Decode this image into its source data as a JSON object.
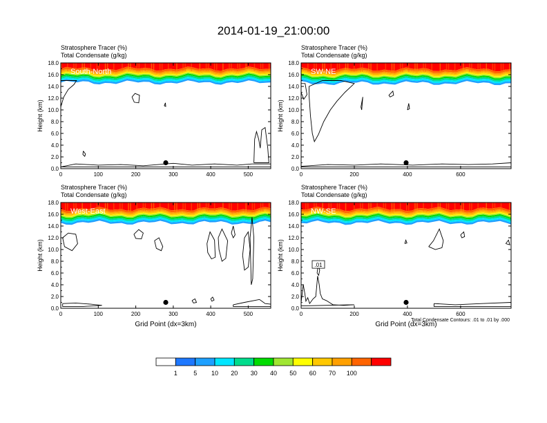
{
  "figure": {
    "title": "2014-01-19_21:00:00",
    "colorbar_labels": [
      "1",
      "5",
      "10",
      "20",
      "30",
      "40",
      "50",
      "60",
      "70",
      "100"
    ],
    "colorbar_colors": [
      "#ffffff",
      "#1e78ff",
      "#1ea0ff",
      "#00e6ff",
      "#00dc8c",
      "#00dc00",
      "#a0e632",
      "#ffff00",
      "#ffc800",
      "#ffa000",
      "#ff6400",
      "#ff0000"
    ]
  },
  "chart_data": [
    {
      "type": "heatmap",
      "panel_label": "South-North",
      "title_lines": [
        "Stratosphere Tracer   (%)",
        "Total Condensate   (g/kg)"
      ],
      "xlabel": "",
      "ylabel": "Height (km)",
      "xlim": [
        0,
        560
      ],
      "ylim": [
        0,
        18
      ],
      "xticks": [
        0,
        100,
        200,
        300,
        400,
        500
      ],
      "yticks": [
        0,
        2,
        4,
        6,
        8,
        10,
        12,
        14,
        16,
        18
      ],
      "tropopause_km": 15.7,
      "marker": {
        "x": 280,
        "y": 1.0
      },
      "contours": [
        [
          [
            0,
            10.5
          ],
          [
            8,
            12.2
          ],
          [
            20,
            13.5
          ],
          [
            35,
            14.3
          ],
          [
            42,
            15
          ],
          [
            0,
            15
          ]
        ],
        [
          [
            190,
            12.2
          ],
          [
            198,
            12.8
          ],
          [
            210,
            12.5
          ],
          [
            208,
            11.2
          ],
          [
            196,
            11.3
          ],
          [
            190,
            12.2
          ]
        ],
        [
          [
            276,
            10.7
          ],
          [
            279,
            11.2
          ],
          [
            280,
            10.6
          ],
          [
            276,
            10.7
          ]
        ],
        [
          [
            60,
            3.0
          ],
          [
            66,
            2.5
          ],
          [
            64,
            2.1
          ],
          [
            59,
            2.4
          ],
          [
            60,
            3.0
          ]
        ],
        [
          [
            0,
            0.3
          ],
          [
            40,
            0.8
          ],
          [
            100,
            0.6
          ],
          [
            160,
            0.7
          ],
          [
            220,
            0.5
          ],
          [
            300,
            0.9
          ],
          [
            350,
            0.6
          ],
          [
            410,
            0.8
          ],
          [
            470,
            0.6
          ],
          [
            510,
            0.8
          ],
          [
            560,
            0.8
          ],
          [
            560,
            0.3
          ],
          [
            0,
            0.3
          ]
        ],
        [
          [
            515,
            1.0
          ],
          [
            517,
            5.0
          ],
          [
            522,
            6.3
          ],
          [
            528,
            5.0
          ],
          [
            532,
            3.5
          ],
          [
            536,
            6.6
          ],
          [
            545,
            7.0
          ],
          [
            552,
            3.5
          ],
          [
            555,
            1.0
          ],
          [
            515,
            1.0
          ]
        ]
      ]
    },
    {
      "type": "heatmap",
      "panel_label": "SW-NE",
      "title_lines": [
        "Stratosphere Tracer   (%)",
        "Total Condensate   (g/kg)"
      ],
      "xlabel": "",
      "ylabel": "Height (km)",
      "xlim": [
        0,
        790
      ],
      "ylim": [
        0,
        18
      ],
      "xticks": [
        0,
        200,
        400,
        600
      ],
      "yticks": [
        0,
        2,
        4,
        6,
        8,
        10,
        12,
        14,
        16,
        18
      ],
      "tropopause_km": 15.6,
      "marker": {
        "x": 395,
        "y": 1.0
      },
      "contours": [
        [
          [
            30,
            12.5
          ],
          [
            35,
            9.0
          ],
          [
            42,
            6.0
          ],
          [
            50,
            4.6
          ],
          [
            65,
            5.8
          ],
          [
            85,
            8.0
          ],
          [
            110,
            10.0
          ],
          [
            135,
            11.5
          ],
          [
            165,
            13.0
          ],
          [
            200,
            14.5
          ],
          [
            150,
            15
          ],
          [
            80,
            15
          ],
          [
            30,
            14.0
          ],
          [
            30,
            12.5
          ]
        ],
        [
          [
            0,
            13
          ],
          [
            10,
            11.8
          ],
          [
            22,
            12.6
          ],
          [
            15,
            14.5
          ],
          [
            0,
            14.5
          ]
        ],
        [
          [
            225,
            10.5
          ],
          [
            232,
            12.2
          ],
          [
            228,
            10.0
          ],
          [
            225,
            10.5
          ]
        ],
        [
          [
            400,
            10.0
          ],
          [
            405,
            11.1
          ],
          [
            408,
            10.2
          ],
          [
            400,
            10.0
          ]
        ],
        [
          [
            330,
            12.5
          ],
          [
            345,
            13.2
          ],
          [
            348,
            12.5
          ],
          [
            335,
            12.2
          ],
          [
            330,
            12.5
          ]
        ],
        [
          [
            0,
            0.4
          ],
          [
            100,
            0.7
          ],
          [
            200,
            0.6
          ],
          [
            300,
            0.8
          ],
          [
            420,
            0.6
          ],
          [
            530,
            0.8
          ],
          [
            630,
            0.7
          ],
          [
            720,
            0.8
          ],
          [
            790,
            1.0
          ],
          [
            790,
            0.3
          ],
          [
            0,
            0.3
          ]
        ]
      ]
    },
    {
      "type": "heatmap",
      "panel_label": "West-East",
      "title_lines": [
        "Stratosphere Tracer   (%)",
        "Total Condensate   (g/kg)"
      ],
      "xlabel": "Grid Point (dx=3km)",
      "ylabel": "Height (km)",
      "xlim": [
        0,
        560
      ],
      "ylim": [
        0,
        18
      ],
      "xticks": [
        0,
        100,
        200,
        300,
        400,
        500
      ],
      "yticks": [
        0,
        2,
        4,
        6,
        8,
        10,
        12,
        14,
        16,
        18
      ],
      "tropopause_km": 15.6,
      "marker": {
        "x": 280,
        "y": 1.0
      },
      "contours": [
        [
          [
            5,
            12.0
          ],
          [
            20,
            12.8
          ],
          [
            40,
            12.6
          ],
          [
            45,
            11.0
          ],
          [
            30,
            9.8
          ],
          [
            10,
            10.5
          ],
          [
            5,
            12.0
          ]
        ],
        [
          [
            195,
            12.6
          ],
          [
            208,
            13.4
          ],
          [
            220,
            12.8
          ],
          [
            215,
            11.8
          ],
          [
            200,
            11.9
          ],
          [
            195,
            12.6
          ]
        ],
        [
          [
            250,
            11.5
          ],
          [
            262,
            12.0
          ],
          [
            272,
            10.5
          ],
          [
            268,
            9.8
          ],
          [
            255,
            10.2
          ],
          [
            250,
            11.5
          ]
        ],
        [
          [
            390,
            11.0
          ],
          [
            398,
            13.0
          ],
          [
            410,
            11.6
          ],
          [
            412,
            8.7
          ],
          [
            402,
            8.4
          ],
          [
            392,
            9.5
          ],
          [
            390,
            11.0
          ]
        ],
        [
          [
            420,
            12.0
          ],
          [
            430,
            13.5
          ],
          [
            445,
            11.5
          ],
          [
            440,
            8.5
          ],
          [
            430,
            8.0
          ],
          [
            422,
            10.0
          ],
          [
            420,
            12.0
          ]
        ],
        [
          [
            455,
            12.8
          ],
          [
            460,
            14.0
          ],
          [
            465,
            12.5
          ],
          [
            460,
            12.0
          ],
          [
            455,
            12.8
          ]
        ],
        [
          [
            485,
            9.0
          ],
          [
            490,
            12.0
          ],
          [
            500,
            13.0
          ],
          [
            505,
            10.0
          ],
          [
            500,
            7.0
          ],
          [
            490,
            6.5
          ],
          [
            485,
            9.0
          ]
        ],
        [
          [
            505,
            12.0
          ],
          [
            510,
            15.5
          ],
          [
            515,
            12.0
          ],
          [
            512,
            5.0
          ],
          [
            508,
            4.0
          ],
          [
            505,
            12.0
          ]
        ],
        [
          [
            5,
            0.8
          ],
          [
            40,
            0.9
          ],
          [
            80,
            0.7
          ],
          [
            110,
            0.5
          ],
          [
            60,
            0.3
          ],
          [
            5,
            0.3
          ],
          [
            5,
            0.8
          ]
        ],
        [
          [
            350,
            1.3
          ],
          [
            358,
            1.6
          ],
          [
            362,
            1.0
          ],
          [
            354,
            0.9
          ],
          [
            350,
            1.3
          ]
        ],
        [
          [
            400,
            1.6
          ],
          [
            405,
            1.9
          ],
          [
            409,
            1.4
          ],
          [
            403,
            1.2
          ],
          [
            400,
            1.6
          ]
        ],
        [
          [
            460,
            0.6
          ],
          [
            490,
            1.0
          ],
          [
            530,
            1.5
          ],
          [
            545,
            0.8
          ],
          [
            560,
            0.7
          ],
          [
            560,
            0.3
          ],
          [
            460,
            0.3
          ],
          [
            460,
            0.6
          ]
        ]
      ]
    },
    {
      "type": "heatmap",
      "panel_label": "NW-SE",
      "title_lines": [
        "Stratosphere Tracer   (%)",
        "Total Condensate   (g/kg)"
      ],
      "xlabel": "Grid Point (dx=3km)",
      "ylabel": "Height (km)",
      "xlim": [
        0,
        790
      ],
      "ylim": [
        0,
        18
      ],
      "xticks": [
        0,
        200,
        400,
        600
      ],
      "yticks": [
        0,
        2,
        4,
        6,
        8,
        10,
        12,
        14,
        16,
        18
      ],
      "tropopause_km": 15.6,
      "marker": {
        "x": 395,
        "y": 1.0
      },
      "footnote": "Total Condensate Contours: .01 to .01 by .000",
      "contour_label": ".01",
      "contours": [
        [
          [
            0,
            1.0
          ],
          [
            8,
            4.0
          ],
          [
            14,
            2.5
          ],
          [
            18,
            1.2
          ],
          [
            25,
            1.8
          ],
          [
            32,
            0.8
          ],
          [
            45,
            1.6
          ],
          [
            55,
            2.0
          ],
          [
            62,
            5.5
          ],
          [
            68,
            4.0
          ],
          [
            72,
            2.5
          ],
          [
            80,
            1.6
          ],
          [
            95,
            1.3
          ],
          [
            120,
            0.6
          ],
          [
            160,
            0.5
          ],
          [
            200,
            0.6
          ],
          [
            0,
            0.4
          ],
          [
            0,
            1.0
          ]
        ],
        [
          [
            60,
            6.0
          ],
          [
            64,
            7.3
          ],
          [
            70,
            6.5
          ],
          [
            66,
            5.6
          ],
          [
            60,
            6.0
          ]
        ],
        [
          [
            390,
            11.0
          ],
          [
            394,
            11.6
          ],
          [
            398,
            11.1
          ],
          [
            390,
            11.0
          ]
        ],
        [
          [
            480,
            10.5
          ],
          [
            498,
            11.5
          ],
          [
            520,
            13.5
          ],
          [
            535,
            11.5
          ],
          [
            530,
            10.3
          ],
          [
            505,
            10.0
          ],
          [
            480,
            10.5
          ]
        ],
        [
          [
            600,
            12.5
          ],
          [
            612,
            13.0
          ],
          [
            615,
            12.2
          ],
          [
            605,
            12.0
          ],
          [
            600,
            12.5
          ]
        ],
        [
          [
            770,
            11.0
          ],
          [
            780,
            11.6
          ],
          [
            785,
            10.8
          ],
          [
            770,
            11.0
          ]
        ],
        [
          [
            500,
            0.8
          ],
          [
            580,
            0.6
          ],
          [
            680,
            0.8
          ],
          [
            790,
            1.0
          ],
          [
            790,
            0.3
          ],
          [
            500,
            0.3
          ],
          [
            500,
            0.8
          ]
        ]
      ]
    }
  ]
}
